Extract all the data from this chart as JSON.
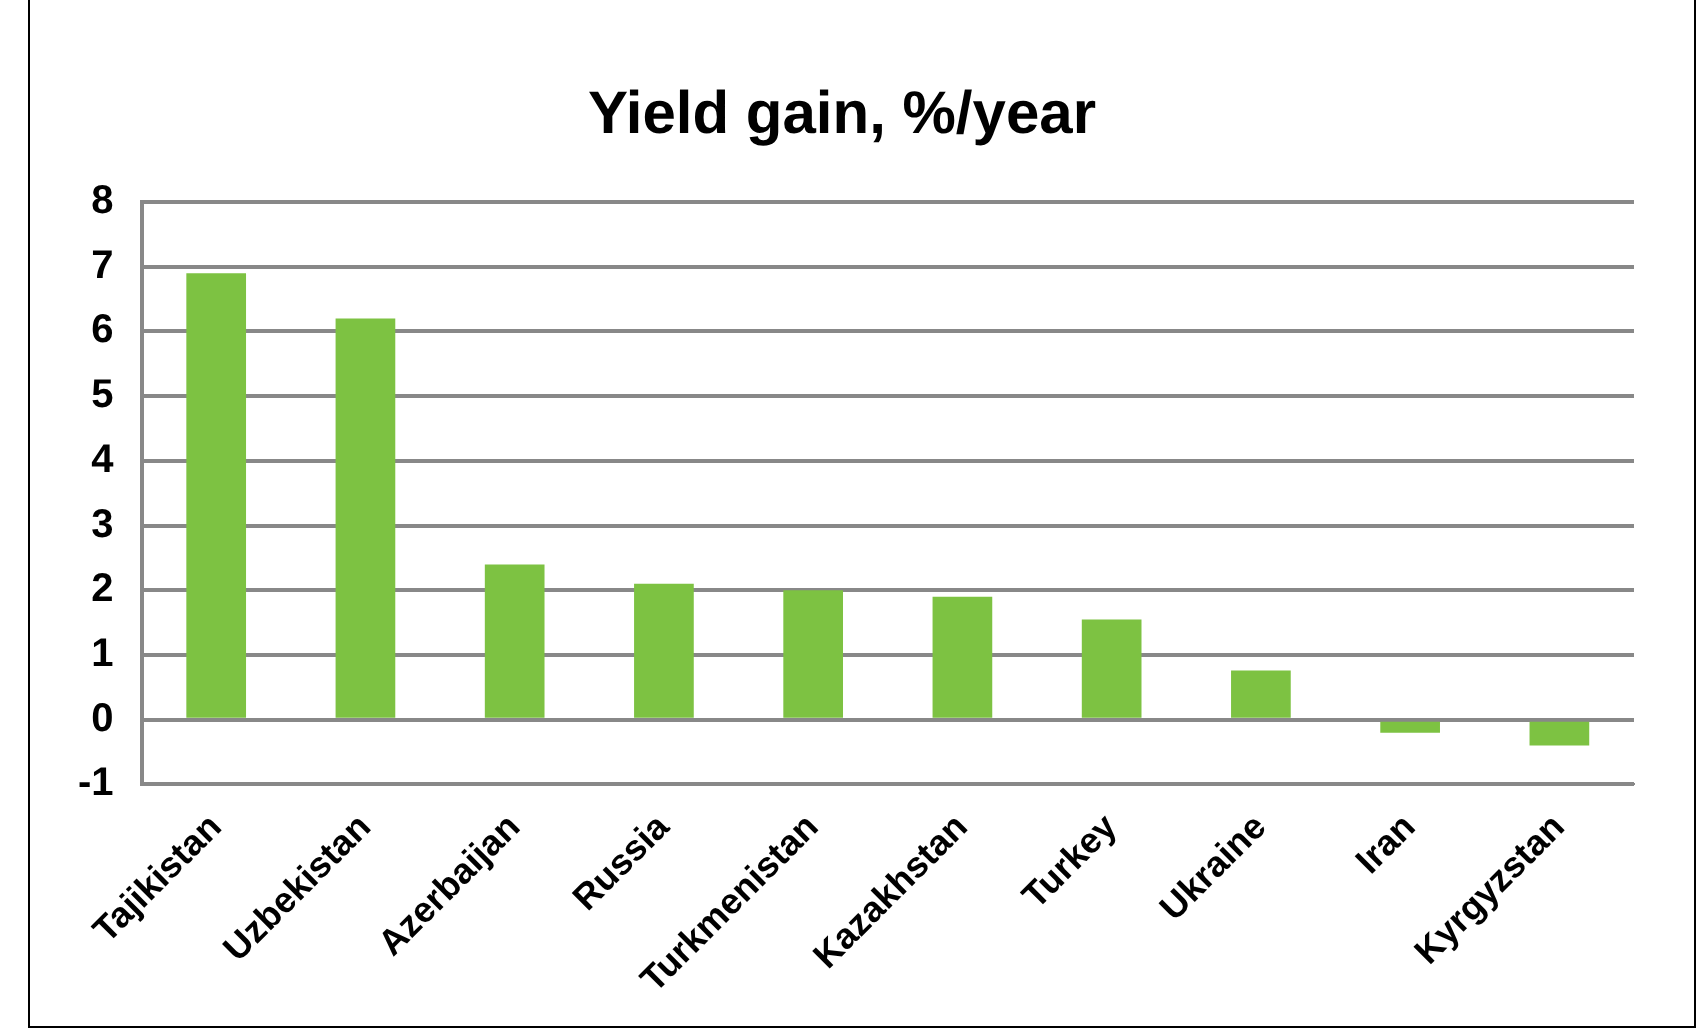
{
  "chart_data": {
    "type": "bar",
    "title": "Yield gain, %/year",
    "categories": [
      "Tajikistan",
      "Uzbekistan",
      "Azerbaijan",
      "Russia",
      "Turkmenistan",
      "Kazakhstan",
      "Turkey",
      "Ukraine",
      "Iran",
      "Kyrgyzstan"
    ],
    "values": [
      6.9,
      6.2,
      2.4,
      2.1,
      2.0,
      1.9,
      1.55,
      0.76,
      -0.2,
      -0.4
    ],
    "color": "#7dc242",
    "ylim": [
      -1,
      8
    ],
    "yticks": [
      -1,
      0,
      1,
      2,
      3,
      4,
      5,
      6,
      7,
      8
    ],
    "grid": "y",
    "legend": false
  }
}
